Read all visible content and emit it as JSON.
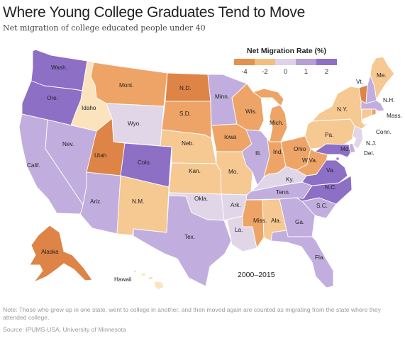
{
  "title": "Where Young College Graduates Tend to Move",
  "subtitle": "Net migration of college educated people under 40",
  "period": "2000–2015",
  "note": "Note: Those who grew up in one state, went to college in another, and then moved again are counted as migrating from the state where they attended college.",
  "source": "Source: IPUMS-USA, University of Minnesota",
  "legend": {
    "title": "Net Migration Rate (%)",
    "ticks": [
      "-4",
      "-2",
      "0",
      "1",
      "2"
    ],
    "colors": [
      "#e4914f",
      "#f3bc80",
      "#ddd2e6",
      "#b59fd4",
      "#8d6fc6"
    ]
  },
  "scale_colors": {
    "strong_loss": "#dd8446",
    "loss": "#eda466",
    "mild_loss": "#f6c892",
    "slight_loss": "#fbe3bd",
    "neutral": "#e0d6e8",
    "gain": "#c1aede",
    "strong_gain": "#8d6fc6"
  },
  "states": {
    "wa": {
      "label": "Wash.",
      "level": "strong_gain"
    },
    "or": {
      "label": "Ore.",
      "level": "strong_gain"
    },
    "ca": {
      "label": "Calif.",
      "level": "gain"
    },
    "id": {
      "label": "Idaho",
      "level": "slight_loss"
    },
    "nv": {
      "label": "Nev.",
      "level": "gain"
    },
    "mt": {
      "label": "Mont.",
      "level": "loss"
    },
    "wy": {
      "label": "Wyo.",
      "level": "neutral"
    },
    "ut": {
      "label": "Utah",
      "level": "strong_loss"
    },
    "co": {
      "label": "Colo.",
      "level": "strong_gain"
    },
    "az": {
      "label": "Ariz.",
      "level": "gain"
    },
    "nm": {
      "label": "N.M.",
      "level": "mild_loss"
    },
    "nd": {
      "label": "N.D.",
      "level": "strong_loss"
    },
    "sd": {
      "label": "S.D.",
      "level": "loss"
    },
    "ne": {
      "label": "Neb.",
      "level": "mild_loss"
    },
    "ks": {
      "label": "Kan.",
      "level": "mild_loss"
    },
    "ok": {
      "label": "Okla.",
      "level": "neutral"
    },
    "tx": {
      "label": "Tex.",
      "level": "gain"
    },
    "mn": {
      "label": "Minn.",
      "level": "gain"
    },
    "ia": {
      "label": "Iowa",
      "level": "loss"
    },
    "mo": {
      "label": "Mo.",
      "level": "mild_loss"
    },
    "ar": {
      "label": "Ark.",
      "level": "neutral"
    },
    "la": {
      "label": "La.",
      "level": "neutral"
    },
    "wi": {
      "label": "Wis.",
      "level": "loss"
    },
    "il": {
      "label": "Ill.",
      "level": "gain"
    },
    "mi": {
      "label": "Mich.",
      "level": "loss"
    },
    "in": {
      "label": "Ind.",
      "level": "loss"
    },
    "oh": {
      "label": "Ohio",
      "level": "loss"
    },
    "ky": {
      "label": "Ky.",
      "level": "neutral"
    },
    "tn": {
      "label": "Tenn.",
      "level": "gain"
    },
    "ms": {
      "label": "Miss.",
      "level": "loss"
    },
    "al": {
      "label": "Ala.",
      "level": "mild_loss"
    },
    "ga": {
      "label": "Ga.",
      "level": "gain"
    },
    "fl": {
      "label": "Fla.",
      "level": "gain"
    },
    "sc": {
      "label": "S.C.",
      "level": "gain"
    },
    "nc": {
      "label": "N.C.",
      "level": "strong_gain"
    },
    "va": {
      "label": "Va.",
      "level": "strong_gain"
    },
    "wv": {
      "label": "W.Va.",
      "level": "loss"
    },
    "pa": {
      "label": "Pa.",
      "level": "mild_loss"
    },
    "ny": {
      "label": "N.Y.",
      "level": "mild_loss"
    },
    "vt": {
      "label": "Vt.",
      "level": "strong_loss"
    },
    "nh": {
      "label": "N.H.",
      "level": "gain"
    },
    "me": {
      "label": "Me.",
      "level": "mild_loss"
    },
    "ma": {
      "label": "Mass.",
      "level": "gain"
    },
    "ct": {
      "label": "Conn.",
      "level": "mild_loss"
    },
    "ri": {
      "label": "",
      "level": "loss"
    },
    "nj": {
      "label": "N.J.",
      "level": "neutral"
    },
    "de": {
      "label": "Del.",
      "level": "gain"
    },
    "md": {
      "label": "Md.",
      "level": "strong_gain"
    },
    "dc": {
      "label": "",
      "level": "strong_gain"
    },
    "ak": {
      "label": "Alaska",
      "level": "strong_loss"
    },
    "hi": {
      "label": "Hawaii",
      "level": "slight_loss"
    }
  }
}
